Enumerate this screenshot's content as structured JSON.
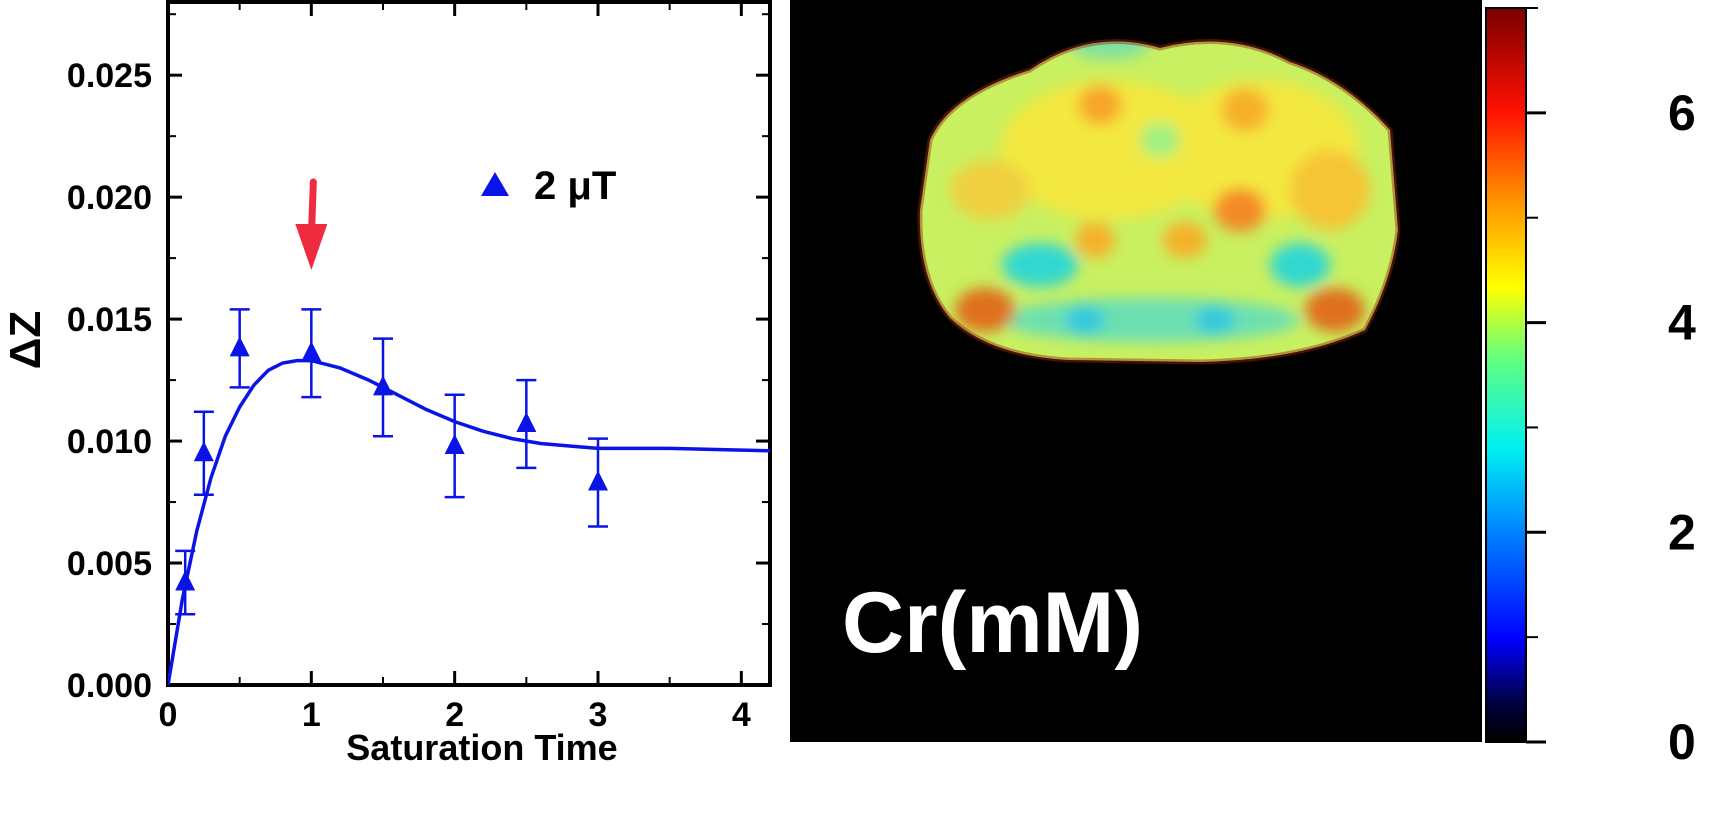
{
  "chart_data": [
    {
      "type": "scatter",
      "ylabel": "ΔZ",
      "xlabel": "Saturation Time",
      "xlim": [
        0,
        4.2
      ],
      "ylim": [
        0,
        0.028
      ],
      "x_ticks": [
        0,
        1,
        2,
        3,
        4
      ],
      "x_tick_labels": [
        "0",
        "1",
        "2",
        "3",
        "4"
      ],
      "y_ticks": [
        0.0,
        0.005,
        0.01,
        0.015,
        0.02,
        0.025
      ],
      "y_tick_labels": [
        "0.000",
        "0.005",
        "0.010",
        "0.015",
        "0.020",
        "0.025"
      ],
      "grid": false,
      "legend": {
        "label": "2 μT",
        "position": "top-right",
        "marker": "triangle"
      },
      "series": [
        {
          "name": "2 μT",
          "color": "#0a14e6",
          "marker": "triangle",
          "points": [
            {
              "x": 0.12,
              "y": 0.0042,
              "err": 0.0013
            },
            {
              "x": 0.25,
              "y": 0.0095,
              "err": 0.0017
            },
            {
              "x": 0.5,
              "y": 0.0138,
              "err": 0.0016
            },
            {
              "x": 1.0,
              "y": 0.0136,
              "err": 0.0018
            },
            {
              "x": 1.5,
              "y": 0.0122,
              "err": 0.002
            },
            {
              "x": 2.0,
              "y": 0.0098,
              "err": 0.0021
            },
            {
              "x": 2.5,
              "y": 0.0107,
              "err": 0.0018
            },
            {
              "x": 3.0,
              "y": 0.0083,
              "err": 0.0018
            }
          ],
          "fit": [
            [
              0,
              0
            ],
            [
              0.1,
              0.0035
            ],
            [
              0.2,
              0.0063
            ],
            [
              0.3,
              0.0085
            ],
            [
              0.4,
              0.0102
            ],
            [
              0.5,
              0.0114
            ],
            [
              0.6,
              0.0123
            ],
            [
              0.7,
              0.0129
            ],
            [
              0.8,
              0.0132
            ],
            [
              0.9,
              0.0133
            ],
            [
              1.0,
              0.0133
            ],
            [
              1.2,
              0.013
            ],
            [
              1.4,
              0.0125
            ],
            [
              1.6,
              0.0119
            ],
            [
              1.8,
              0.0113
            ],
            [
              2.0,
              0.0108
            ],
            [
              2.2,
              0.0104
            ],
            [
              2.4,
              0.0101
            ],
            [
              2.6,
              0.0099
            ],
            [
              2.8,
              0.0098
            ],
            [
              3.0,
              0.0097
            ],
            [
              3.5,
              0.0097
            ],
            [
              4.2,
              0.0096
            ]
          ]
        }
      ],
      "annotations": [
        {
          "type": "arrow",
          "x": 1.0,
          "color": "#ee2b3f"
        }
      ]
    },
    {
      "type": "heatmap",
      "label": "Cr(mM)",
      "colorbar": {
        "min": 0,
        "max": 7,
        "ticks": [
          0,
          2,
          4,
          6
        ],
        "tick_labels": [
          "0",
          "2",
          "4",
          "6"
        ],
        "colormap": "jet"
      }
    }
  ]
}
